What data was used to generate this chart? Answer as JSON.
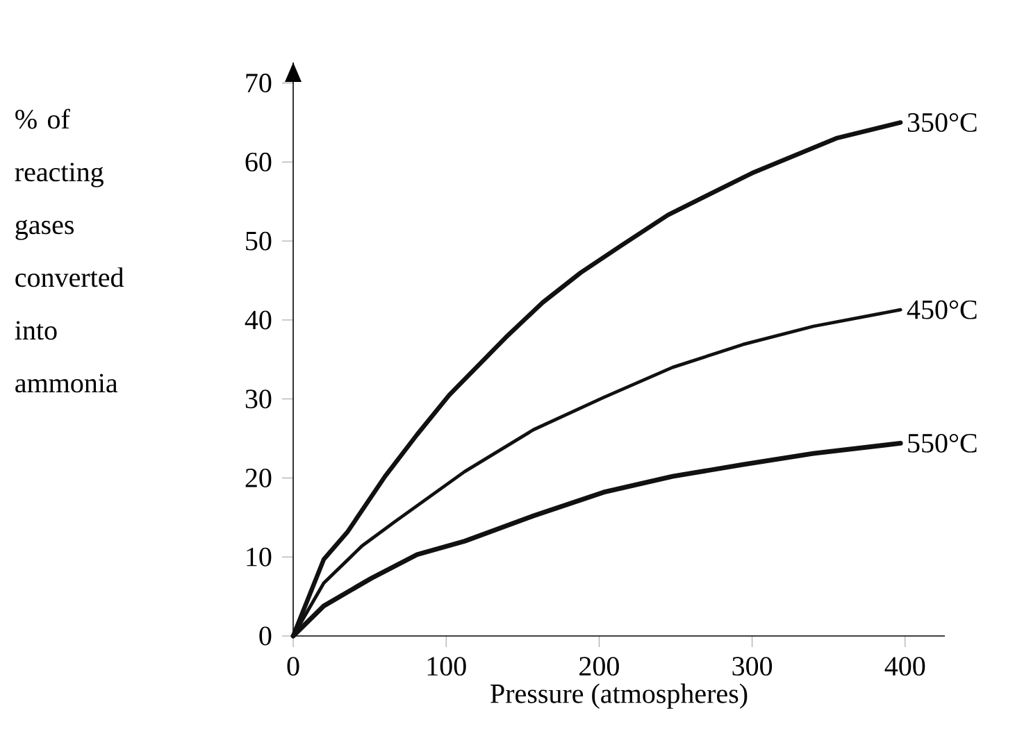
{
  "chart_data": {
    "type": "line",
    "xlabel": "Pressure (atmospheres)",
    "ylabel": "% of reacting gases converted into ammonia",
    "xlim": [
      0,
      426
    ],
    "ylim": [
      0,
      72.6
    ],
    "xticks": [
      0,
      100,
      200,
      300,
      400
    ],
    "yticks": [
      0,
      10,
      20,
      30,
      40,
      50,
      60,
      70
    ],
    "grid": false,
    "legend": false,
    "marker": "none",
    "line_style": "solid",
    "series": [
      {
        "name": "350°C",
        "color": "#111111",
        "x": [
          0,
          20,
          35.6,
          60,
          81,
          102,
          139,
          163,
          188,
          215,
          245,
          300,
          355,
          397
        ],
        "values": [
          0,
          9.7,
          13.2,
          20.2,
          25.5,
          30.5,
          37.8,
          42.2,
          46,
          49.5,
          53.3,
          58.6,
          63,
          65
        ]
      },
      {
        "name": "450°C",
        "color": "#111111",
        "x": [
          0,
          20,
          45,
          66,
          112,
          157,
          203,
          248,
          294,
          340,
          397
        ],
        "values": [
          0,
          6.7,
          11.4,
          14.4,
          20.8,
          26.1,
          30.2,
          34,
          36.9,
          39.2,
          41.3
        ]
      },
      {
        "name": "550°C",
        "color": "#111111",
        "x": [
          0,
          20,
          51,
          81,
          112,
          157,
          203,
          248,
          294,
          340,
          397
        ],
        "values": [
          0,
          3.8,
          7.3,
          10.3,
          12,
          15.2,
          18.2,
          20.2,
          21.7,
          23.1,
          24.4
        ]
      }
    ]
  }
}
